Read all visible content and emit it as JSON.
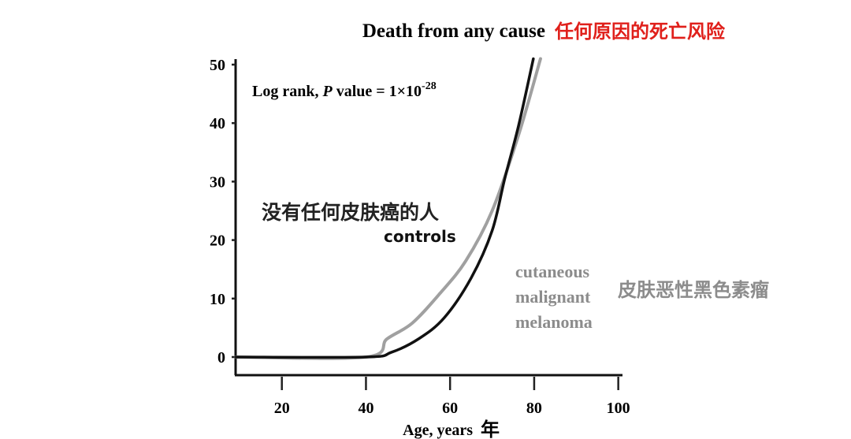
{
  "chart_data": {
    "type": "line",
    "title": "Death from any cause",
    "title_cn": "任何原因的死亡风险",
    "annotation": "Log rank, P value = 1×10-28",
    "annotation_parts": {
      "prefix": "Log rank, ",
      "italic": "P",
      "middle": " value = 1×10",
      "sup": "-28"
    },
    "xlabel": "Age, years",
    "xlabel_cn": "年",
    "ylabel": "",
    "xlim": [
      9,
      101
    ],
    "ylim": [
      0,
      51
    ],
    "xticks": [
      20,
      40,
      60,
      80,
      100
    ],
    "yticks": [
      0,
      10,
      20,
      30,
      40,
      50
    ],
    "grid": false,
    "colors": {
      "title_cn": "#e0201b",
      "controls": "#111111",
      "melanoma": "#a0a0a0",
      "melanoma_label": "#8c8c8c"
    },
    "series": [
      {
        "name": "controls",
        "label_cn": "没有任何皮肤癌的人",
        "color": "#111111",
        "x": [
          9,
          40,
          46,
          52.5,
          58.6,
          65,
          70,
          73,
          76.3,
          79.8
        ],
        "y": [
          0,
          0,
          0.8,
          3.1,
          6.7,
          13.5,
          21.6,
          30.5,
          39.6,
          51
        ]
      },
      {
        "name": "cutaneous malignant melanoma",
        "name_lines": [
          "cutaneous",
          "malignant",
          "melanoma"
        ],
        "label_cn": "皮肤恶性黑色素瘤",
        "color": "#a0a0a0",
        "x": [
          9,
          40,
          45,
          51,
          57.5,
          63.7,
          70,
          76.3,
          81.5
        ],
        "y": [
          0,
          0,
          3.1,
          5.8,
          10.8,
          16.4,
          25,
          38,
          51
        ]
      }
    ]
  }
}
